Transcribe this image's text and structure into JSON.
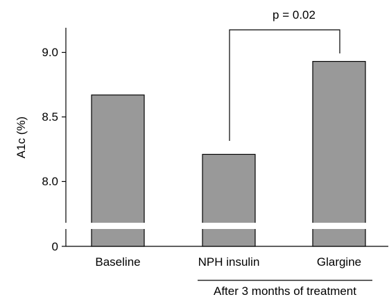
{
  "chart_data": {
    "type": "bar",
    "categories": [
      "Baseline",
      "NPH insulin",
      "Glargine"
    ],
    "values": [
      8.67,
      8.21,
      8.93
    ],
    "ylabel": "A1c (%)",
    "y_ticks": [
      "0",
      "8.0",
      "8.5",
      "9.0"
    ],
    "ylim": [
      7.55,
      9.2
    ],
    "axis_break": true,
    "group_label": "After 3 months of treatment",
    "significance": {
      "label": "p = 0.02",
      "between": [
        "NPH insulin",
        "Glargine"
      ]
    },
    "bar_color": "#999999",
    "grid": false
  }
}
